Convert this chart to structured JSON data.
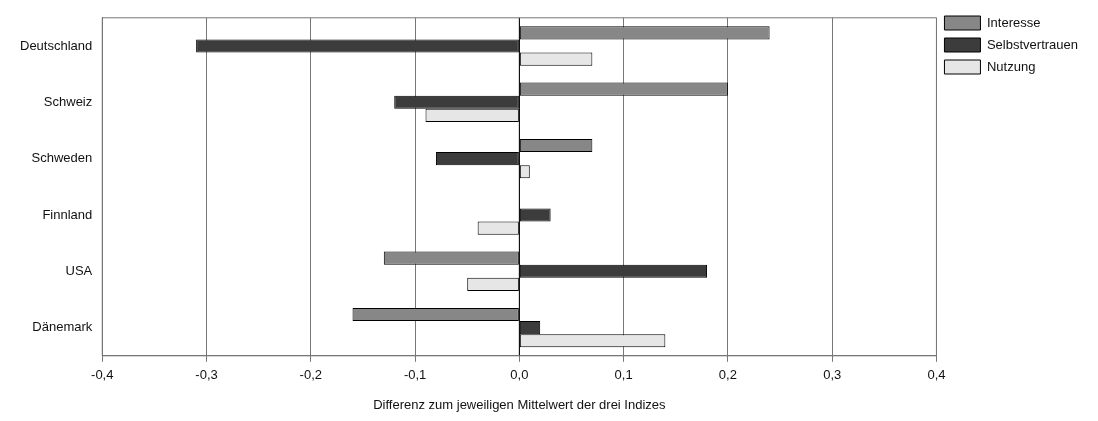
{
  "chart_data": {
    "type": "bar",
    "orientation": "horizontal",
    "xlabel": "Differenz zum jeweiligen Mittelwert der drei Indizes",
    "categories": [
      "Deutschland",
      "Schweiz",
      "Schweden",
      "Finnland",
      "USA",
      "Dänemark"
    ],
    "series": [
      {
        "name": "Interesse",
        "color": "#878787",
        "values": [
          0.24,
          0.2,
          0.07,
          0,
          -0.13,
          -0.16
        ]
      },
      {
        "name": "Selbstvertrauen",
        "color": "#3c3c3c",
        "values": [
          -0.31,
          -0.12,
          -0.08,
          0.03,
          0.18,
          0.02
        ]
      },
      {
        "name": "Nutzung",
        "color": "#e6e6e6",
        "values": [
          0.07,
          -0.09,
          0.01,
          -0.04,
          -0.05,
          0.14
        ]
      }
    ],
    "xlim": [
      -0.4,
      0.4
    ],
    "xticks": [
      {
        "value": -0.4,
        "label": "-0,4"
      },
      {
        "value": -0.3,
        "label": "-0,3"
      },
      {
        "value": -0.2,
        "label": "-0,2"
      },
      {
        "value": -0.1,
        "label": "-0,1"
      },
      {
        "value": 0,
        "label": "0,0"
      },
      {
        "value": 0.1,
        "label": "0,1"
      },
      {
        "value": 0.2,
        "label": "0,2"
      },
      {
        "value": 0.3,
        "label": "0,3"
      },
      {
        "value": 0.4,
        "label": "0,4"
      }
    ],
    "grid": "x",
    "legend": "top right"
  }
}
